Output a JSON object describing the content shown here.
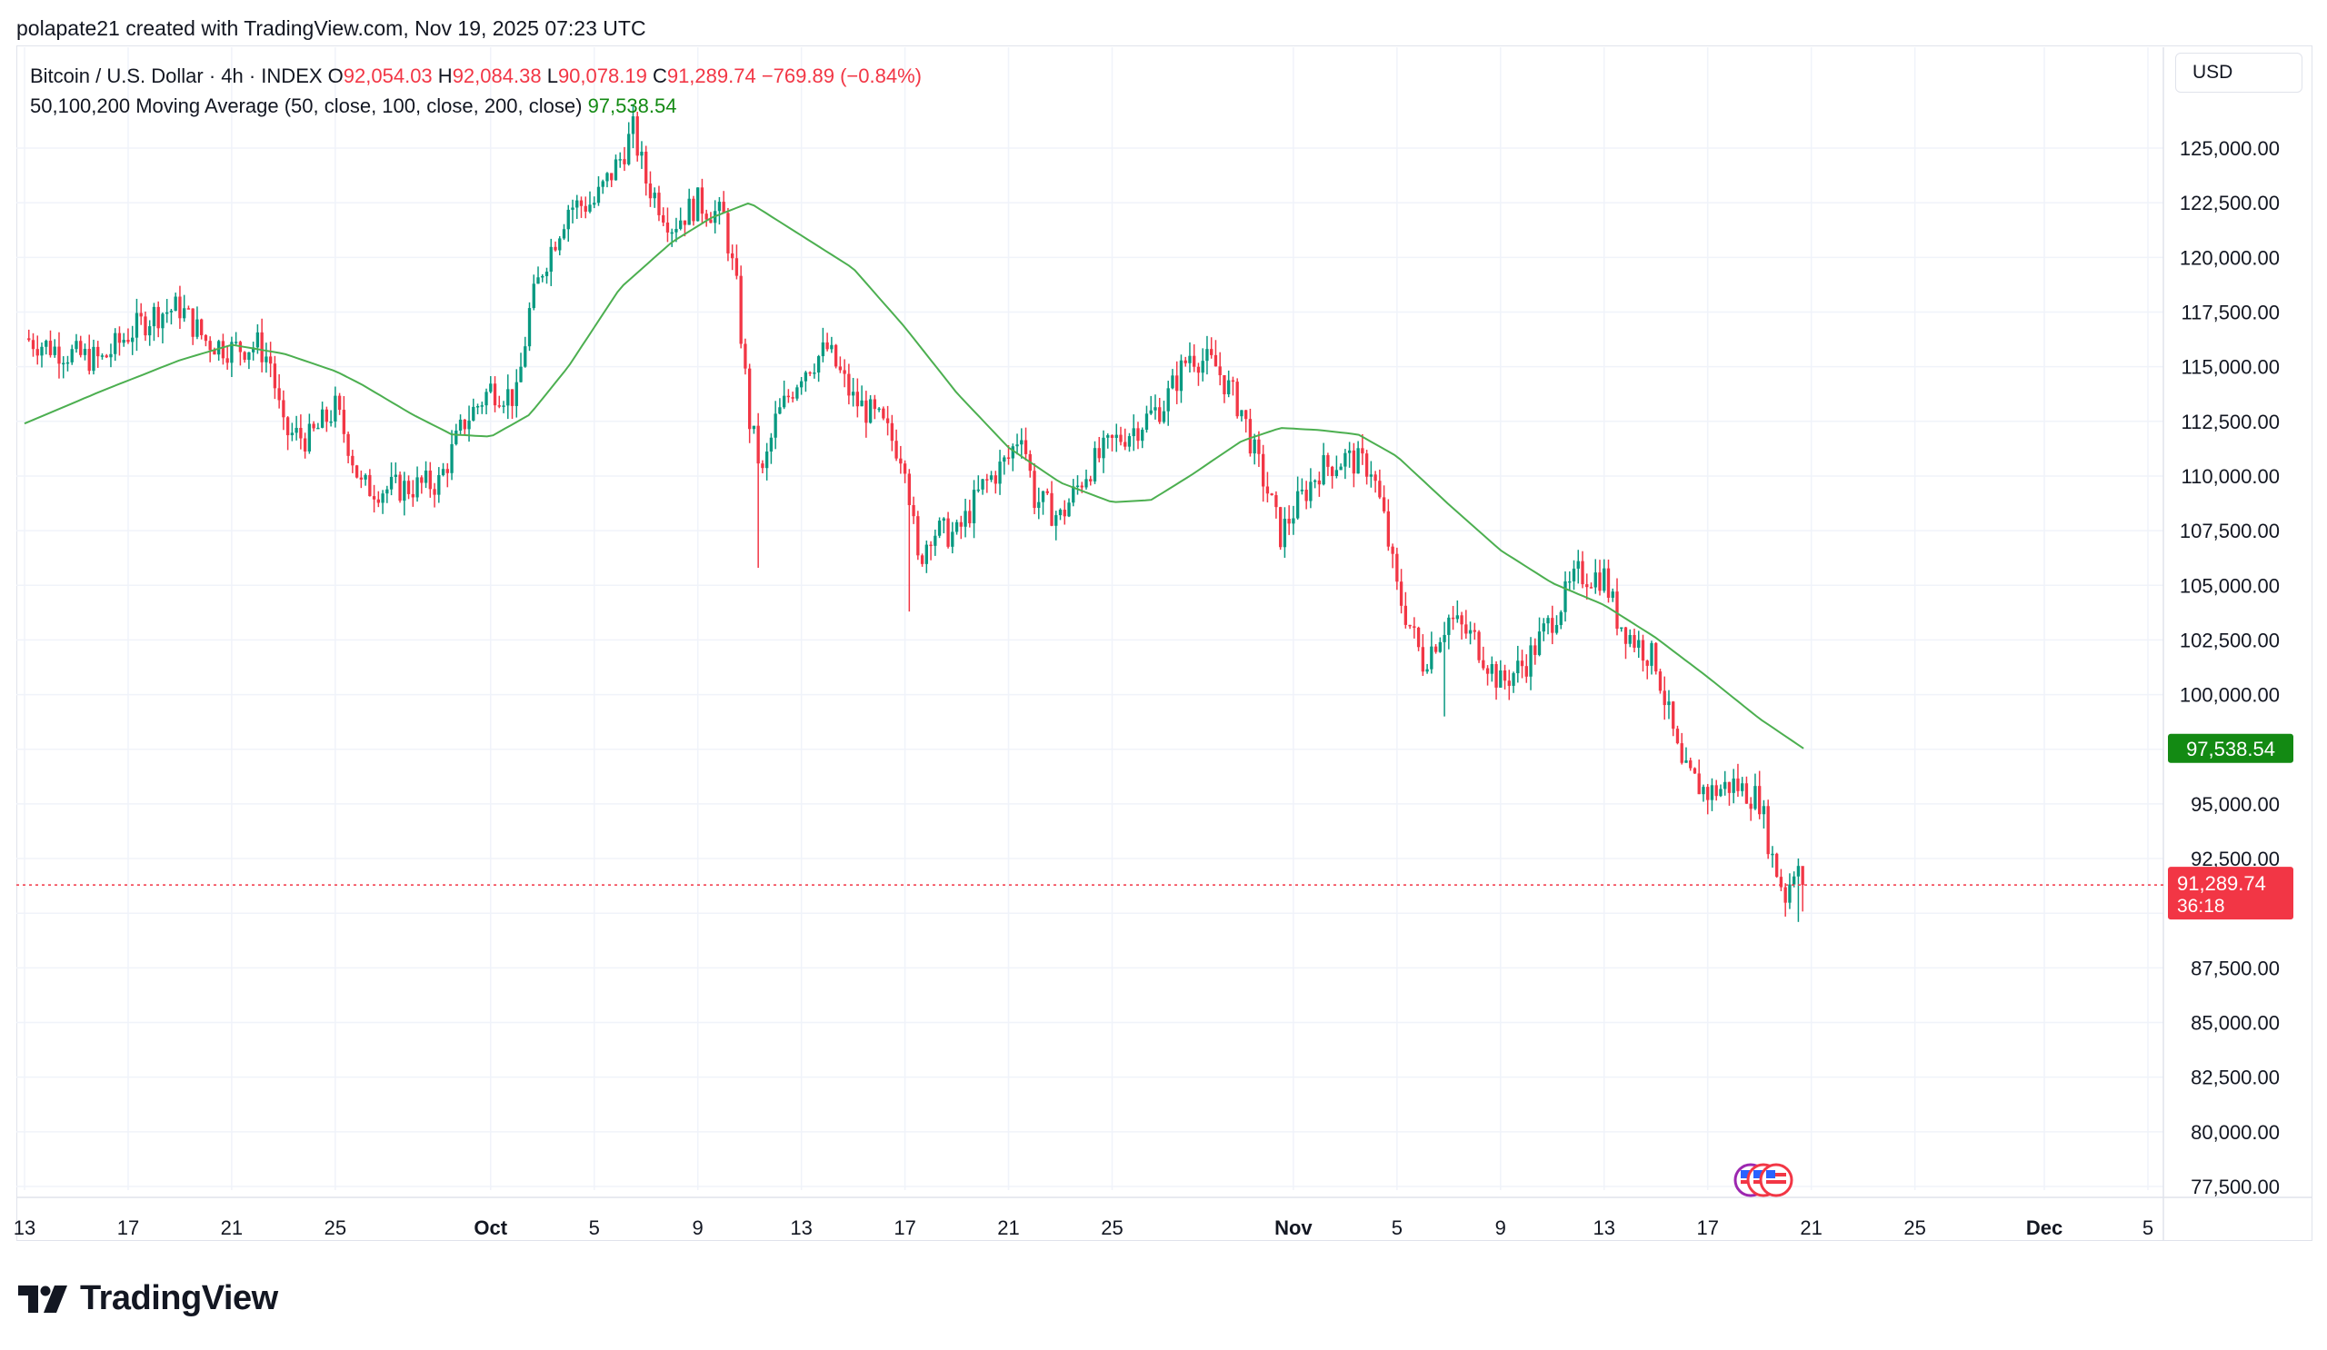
{
  "attribution": "polapate21 created with TradingView.com, Nov 19, 2025 07:23 UTC",
  "legend": {
    "symbol": "Bitcoin / U.S. Dollar · 4h · INDEX",
    "o_label": "O",
    "o_value": "92,054.03",
    "h_label": "H",
    "h_value": "92,084.38",
    "l_label": "L",
    "l_value": "90,078.19",
    "c_label": "C",
    "c_value": "91,289.74",
    "change": "−769.89 (−0.84%)",
    "ma_label": "50,100,200 Moving Average (50, close, 100, close, 200, close)",
    "ma_value": "97,538.54"
  },
  "currency": "USD",
  "brand": "TradingView",
  "colors": {
    "up": "#089981",
    "down": "#f23645",
    "ma": "#4caf50",
    "ma_tag": "#138a13",
    "price_tag": "#f23645",
    "grid": "#f0f3fa",
    "axis_text": "#131722"
  },
  "chart_data": {
    "type": "candlestick",
    "timeframe": "4h",
    "y_axis": {
      "ylim": [
        76250,
        128000
      ],
      "ticks": [
        "125,000.00",
        "122,500.00",
        "120,000.00",
        "117,500.00",
        "115,000.00",
        "112,500.00",
        "110,000.00",
        "107,500.00",
        "105,000.00",
        "102,500.00",
        "100,000.00",
        "95,000.00",
        "92,500.00",
        "87,500.00",
        "85,000.00",
        "82,500.00",
        "80,000.00",
        "77,500.00"
      ],
      "tick_values": [
        125000,
        122500,
        120000,
        117500,
        115000,
        112500,
        110000,
        107500,
        105000,
        102500,
        100000,
        95000,
        92500,
        87500,
        85000,
        82500,
        80000,
        77500
      ]
    },
    "x_axis": {
      "ticks": [
        "13",
        "17",
        "21",
        "25",
        "Oct",
        "5",
        "9",
        "13",
        "17",
        "21",
        "25",
        "Nov",
        "5",
        "9",
        "13",
        "17",
        "21",
        "25",
        "Dec",
        "5"
      ],
      "tick_days": [
        0,
        4,
        8,
        12,
        18,
        22,
        26,
        30,
        34,
        38,
        42,
        49,
        53,
        57,
        61,
        65,
        69,
        73,
        78,
        82
      ]
    },
    "x_start_date": "2025-09-13",
    "price_line": {
      "value": 91289.74,
      "label": "91,289.74",
      "countdown": "36:18"
    },
    "ma_tag": {
      "value": 97538.54,
      "label": "97,538.54"
    },
    "series_close_keypoints": [
      [
        0,
        116300
      ],
      [
        1,
        115900
      ],
      [
        2,
        115500
      ],
      [
        3,
        115300
      ],
      [
        4,
        116500
      ],
      [
        5,
        117400
      ],
      [
        6,
        117700
      ],
      [
        7,
        116200
      ],
      [
        8,
        115800
      ],
      [
        9,
        116000
      ],
      [
        9.5,
        115200
      ],
      [
        10,
        112000
      ],
      [
        11,
        111700
      ],
      [
        12,
        113100
      ],
      [
        12.5,
        111500
      ],
      [
        13,
        109500
      ],
      [
        14,
        109400
      ],
      [
        15,
        109500
      ],
      [
        16,
        109700
      ],
      [
        17,
        112500
      ],
      [
        18,
        114000
      ],
      [
        19,
        113600
      ],
      [
        19.5,
        117500
      ],
      [
        20,
        119500
      ],
      [
        21,
        122300
      ],
      [
        22,
        122500
      ],
      [
        23,
        124500
      ],
      [
        23.5,
        125800
      ],
      [
        24,
        123500
      ],
      [
        25,
        121500
      ],
      [
        26,
        122500
      ],
      [
        27,
        121800
      ],
      [
        27.5,
        118500
      ],
      [
        28,
        112500
      ],
      [
        28.5,
        110000
      ],
      [
        29,
        112500
      ],
      [
        30,
        114800
      ],
      [
        31,
        115800
      ],
      [
        32,
        113500
      ],
      [
        33,
        112500
      ],
      [
        34,
        110800
      ],
      [
        34.5,
        106000
      ],
      [
        35,
        107500
      ],
      [
        36,
        107300
      ],
      [
        37,
        109500
      ],
      [
        38,
        110800
      ],
      [
        38.5,
        112200
      ],
      [
        39,
        109000
      ],
      [
        40,
        108100
      ],
      [
        41,
        110200
      ],
      [
        42,
        111500
      ],
      [
        43,
        112300
      ],
      [
        44,
        113300
      ],
      [
        45,
        115600
      ],
      [
        46,
        115000
      ],
      [
        47,
        113000
      ],
      [
        47.5,
        111000
      ],
      [
        48,
        109300
      ],
      [
        48.5,
        107300
      ],
      [
        49,
        108400
      ],
      [
        50,
        110300
      ],
      [
        51,
        110800
      ],
      [
        52,
        110400
      ],
      [
        52.5,
        108000
      ],
      [
        53,
        104800
      ],
      [
        54,
        101500
      ],
      [
        55,
        103500
      ],
      [
        56,
        102500
      ],
      [
        57,
        100500
      ],
      [
        58,
        101500
      ],
      [
        59,
        103500
      ],
      [
        60,
        105500
      ],
      [
        61,
        105400
      ],
      [
        61.5,
        103500
      ],
      [
        62,
        102700
      ],
      [
        63,
        101500
      ],
      [
        63.5,
        99000
      ],
      [
        64,
        96500
      ],
      [
        65,
        95500
      ],
      [
        66,
        95900
      ],
      [
        67,
        95200
      ],
      [
        67.5,
        92500
      ],
      [
        68,
        90800
      ],
      [
        68.5,
        92700
      ],
      [
        68.7,
        91289.74
      ]
    ],
    "ma_keypoints": [
      [
        0,
        112400
      ],
      [
        3,
        113900
      ],
      [
        6,
        115300
      ],
      [
        8,
        116000
      ],
      [
        10,
        115600
      ],
      [
        12,
        114800
      ],
      [
        13,
        114200
      ],
      [
        15,
        112800
      ],
      [
        16.5,
        111900
      ],
      [
        18,
        111800
      ],
      [
        19.5,
        112800
      ],
      [
        21,
        115000
      ],
      [
        23,
        118600
      ],
      [
        25,
        120700
      ],
      [
        26.5,
        121800
      ],
      [
        28,
        122500
      ],
      [
        30,
        121000
      ],
      [
        32,
        119500
      ],
      [
        34,
        116800
      ],
      [
        36,
        113800
      ],
      [
        38,
        111300
      ],
      [
        40,
        109700
      ],
      [
        42,
        108800
      ],
      [
        43.5,
        108900
      ],
      [
        45,
        110000
      ],
      [
        47,
        111600
      ],
      [
        48.5,
        112200
      ],
      [
        50,
        112100
      ],
      [
        51.5,
        111900
      ],
      [
        53,
        110900
      ],
      [
        55,
        108700
      ],
      [
        57,
        106600
      ],
      [
        59,
        105100
      ],
      [
        61,
        104100
      ],
      [
        63,
        102600
      ],
      [
        65,
        100800
      ],
      [
        67,
        98900
      ],
      [
        68.7,
        97538.54
      ]
    ]
  }
}
